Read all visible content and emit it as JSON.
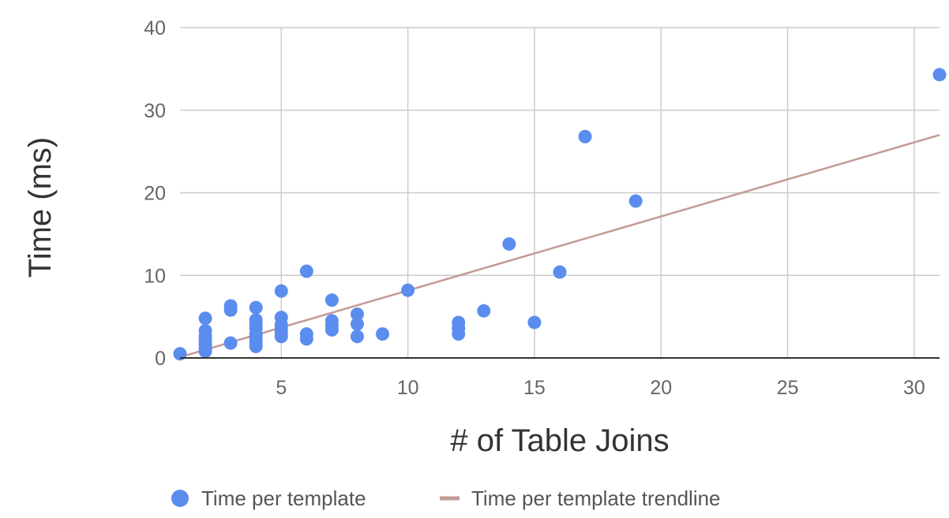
{
  "chart_data": {
    "type": "scatter",
    "xlabel": "# of Table Joins",
    "ylabel": "Time (ms)",
    "xlim": [
      1,
      31
    ],
    "ylim": [
      0,
      40
    ],
    "x_ticks": [
      5,
      10,
      15,
      20,
      25,
      30
    ],
    "y_ticks": [
      0,
      10,
      20,
      30,
      40
    ],
    "grid": true,
    "legend_position": "bottom",
    "series": [
      {
        "name": "Time per template",
        "marker": "circle",
        "color": "#5b8def",
        "points": [
          [
            1,
            0.5
          ],
          [
            2,
            0.8
          ],
          [
            2,
            1.2
          ],
          [
            2,
            1.6
          ],
          [
            2,
            2.1
          ],
          [
            2,
            2.6
          ],
          [
            2,
            3.3
          ],
          [
            2,
            4.8
          ],
          [
            3,
            1.8
          ],
          [
            3,
            5.8
          ],
          [
            3,
            6.3
          ],
          [
            4,
            1.4
          ],
          [
            4,
            1.9
          ],
          [
            4,
            2.4
          ],
          [
            4,
            2.9
          ],
          [
            4,
            3.6
          ],
          [
            4,
            4.1
          ],
          [
            4,
            4.6
          ],
          [
            4,
            6.1
          ],
          [
            5,
            2.6
          ],
          [
            5,
            3.1
          ],
          [
            5,
            3.6
          ],
          [
            5,
            4.0
          ],
          [
            5,
            4.9
          ],
          [
            5,
            8.1
          ],
          [
            6,
            2.3
          ],
          [
            6,
            2.9
          ],
          [
            6,
            10.5
          ],
          [
            7,
            3.4
          ],
          [
            7,
            3.9
          ],
          [
            7,
            4.5
          ],
          [
            7,
            7.0
          ],
          [
            8,
            2.6
          ],
          [
            8,
            4.1
          ],
          [
            8,
            5.3
          ],
          [
            9,
            2.9
          ],
          [
            10,
            8.2
          ],
          [
            12,
            2.9
          ],
          [
            12,
            3.6
          ],
          [
            12,
            4.3
          ],
          [
            13,
            5.7
          ],
          [
            14,
            13.8
          ],
          [
            15,
            4.3
          ],
          [
            16,
            10.4
          ],
          [
            17,
            26.8
          ],
          [
            19,
            19.0
          ],
          [
            31,
            34.3
          ]
        ]
      },
      {
        "name": "Time per template trendline",
        "type": "line",
        "color": "#c49a96",
        "points": [
          [
            1,
            0.1
          ],
          [
            31,
            27.0
          ]
        ]
      }
    ]
  }
}
